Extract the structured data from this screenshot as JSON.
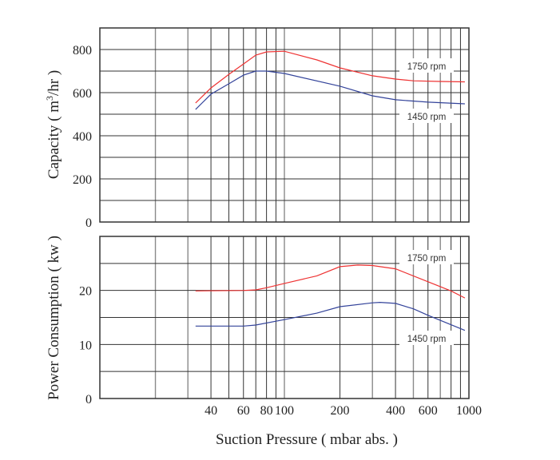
{
  "chart_data": [
    {
      "type": "line",
      "title": "",
      "xlabel": "Suction Pressure ( mbar abs. )",
      "ylabel": "Capacity ( m3/hr )",
      "ylabel_parts": [
        "Capacity ( m",
        "3",
        "/hr )"
      ],
      "xscale": "log",
      "xlim": [
        10,
        1000
      ],
      "ylim": [
        0,
        900
      ],
      "yticks": [
        0,
        200,
        400,
        600,
        800
      ],
      "grid": true,
      "series": [
        {
          "name": "1750 rpm",
          "color": "#ee3333",
          "x": [
            33,
            40,
            50,
            60,
            70,
            80,
            100,
            150,
            200,
            300,
            400,
            500,
            700,
            950
          ],
          "y": [
            552,
            622,
            685,
            733,
            774,
            789,
            792,
            752,
            715,
            678,
            663,
            655,
            652,
            650
          ]
        },
        {
          "name": "1450 rpm",
          "color": "#33439a",
          "x": [
            33,
            40,
            50,
            60,
            70,
            80,
            100,
            200,
            300,
            400,
            600,
            950
          ],
          "y": [
            522,
            593,
            641,
            681,
            700,
            700,
            689,
            630,
            585,
            567,
            556,
            548
          ]
        }
      ]
    },
    {
      "type": "line",
      "title": "",
      "xlabel": "Suction Pressure ( mbar abs. )",
      "ylabel": "Power Consumption ( kw )",
      "xscale": "log",
      "xlim": [
        10,
        1000
      ],
      "ylim": [
        0,
        30
      ],
      "yticks": [
        0,
        10,
        20
      ],
      "xticks": [
        40,
        60,
        80,
        100,
        200,
        400,
        600,
        1000
      ],
      "grid": true,
      "series": [
        {
          "name": "1750 rpm",
          "color": "#ee3333",
          "x": [
            33,
            60,
            70,
            80,
            100,
            150,
            200,
            250,
            300,
            400,
            600,
            800,
            950
          ],
          "y": [
            19.9,
            20,
            20.1,
            20.5,
            21.3,
            22.7,
            24.4,
            24.7,
            24.6,
            24,
            21.6,
            19.9,
            18.6
          ]
        },
        {
          "name": "1450 rpm",
          "color": "#33439a",
          "x": [
            33,
            60,
            70,
            100,
            150,
            200,
            300,
            330,
            400,
            500,
            600,
            950
          ],
          "y": [
            13.4,
            13.4,
            13.6,
            14.6,
            15.8,
            17,
            17.7,
            17.8,
            17.6,
            16.6,
            15.4,
            12.6
          ]
        }
      ]
    }
  ]
}
